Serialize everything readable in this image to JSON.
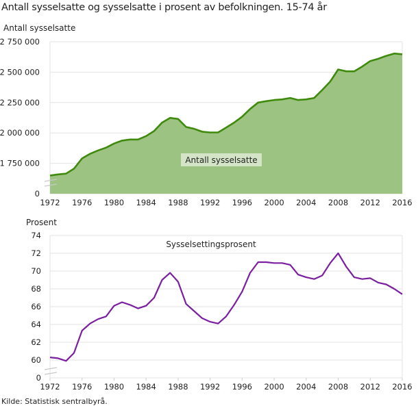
{
  "title": "Antall sysselsatte og sysselsatte i prosent av befolkningen. 15-74 år",
  "source": "Kilde: Statistisk sentralbyrå.",
  "colors": {
    "area_fill": "#9dc383",
    "area_line": "#3f8a0c",
    "line2": "#7a1fa0",
    "grid": "#e3e3e3"
  },
  "chart_data": [
    {
      "type": "area",
      "ylabel": "Antall sysselsatte",
      "series": [
        {
          "name": "Antall sysselsatte",
          "values": [
            1650000,
            1659000,
            1665000,
            1706000,
            1790000,
            1828000,
            1856000,
            1879000,
            1913000,
            1937000,
            1946000,
            1946000,
            1974000,
            2016000,
            2085000,
            2124000,
            2115000,
            2049000,
            2034000,
            2010000,
            2004000,
            2004000,
            2044000,
            2085000,
            2134000,
            2197000,
            2250000,
            2261000,
            2271000,
            2276000,
            2288000,
            2271000,
            2276000,
            2288000,
            2353000,
            2423000,
            2522000,
            2507000,
            2507000,
            2546000,
            2591000,
            2610000,
            2634000,
            2653000,
            2647000
          ]
        }
      ],
      "x": [
        1972,
        1973,
        1974,
        1975,
        1976,
        1977,
        1978,
        1979,
        1980,
        1981,
        1982,
        1983,
        1984,
        1985,
        1986,
        1987,
        1988,
        1989,
        1990,
        1991,
        1992,
        1993,
        1994,
        1995,
        1996,
        1997,
        1998,
        1999,
        2000,
        2001,
        2002,
        2003,
        2004,
        2005,
        2006,
        2007,
        2008,
        2009,
        2010,
        2011,
        2012,
        2013,
        2014,
        2015,
        2016
      ],
      "xticks": [
        "1972",
        "1976",
        "1980",
        "1984",
        "1988",
        "1992",
        "1996",
        "2000",
        "2004",
        "2008",
        "2012",
        "2016"
      ],
      "yticks": [
        {
          "value": 0,
          "label": "0"
        },
        {
          "value": 1750000,
          "label": "1 750 000"
        },
        {
          "value": 2000000,
          "label": "2 000 000"
        },
        {
          "value": 2250000,
          "label": "2 250 000"
        },
        {
          "value": 2500000,
          "label": "2 500 000"
        },
        {
          "value": 2750000,
          "label": "2 750 000"
        }
      ],
      "ylim": [
        0,
        2750000
      ],
      "axis_break": true,
      "grid": true
    },
    {
      "type": "line",
      "ylabel": "Prosent",
      "series": [
        {
          "name": "Sysselsettingsprosent",
          "values": [
            60.3,
            60.2,
            59.9,
            60.8,
            63.3,
            64.1,
            64.6,
            64.9,
            66.1,
            66.5,
            66.2,
            65.8,
            66.1,
            67.0,
            69.0,
            69.8,
            68.8,
            66.3,
            65.5,
            64.7,
            64.3,
            64.1,
            64.9,
            66.2,
            67.7,
            69.8,
            71.0,
            71.0,
            70.9,
            70.9,
            70.7,
            69.6,
            69.3,
            69.1,
            69.5,
            70.9,
            72.0,
            70.5,
            69.3,
            69.1,
            69.2,
            68.7,
            68.5,
            68.0,
            67.4
          ]
        }
      ],
      "x": [
        1972,
        1973,
        1974,
        1975,
        1976,
        1977,
        1978,
        1979,
        1980,
        1981,
        1982,
        1983,
        1984,
        1985,
        1986,
        1987,
        1988,
        1989,
        1990,
        1991,
        1992,
        1993,
        1994,
        1995,
        1996,
        1997,
        1998,
        1999,
        2000,
        2001,
        2002,
        2003,
        2004,
        2005,
        2006,
        2007,
        2008,
        2009,
        2010,
        2011,
        2012,
        2013,
        2014,
        2015,
        2016
      ],
      "xticks": [
        "1972",
        "1976",
        "1980",
        "1984",
        "1988",
        "1992",
        "1996",
        "2000",
        "2004",
        "2008",
        "2012",
        "2016"
      ],
      "yticks": [
        {
          "value": 0,
          "label": "0"
        },
        {
          "value": 60,
          "label": "60"
        },
        {
          "value": 62,
          "label": "62"
        },
        {
          "value": 64,
          "label": "64"
        },
        {
          "value": 66,
          "label": "66"
        },
        {
          "value": 68,
          "label": "68"
        },
        {
          "value": 70,
          "label": "70"
        },
        {
          "value": 72,
          "label": "72"
        },
        {
          "value": 74,
          "label": "74"
        }
      ],
      "ylim": [
        0,
        74
      ],
      "axis_break": true,
      "grid": true
    }
  ]
}
